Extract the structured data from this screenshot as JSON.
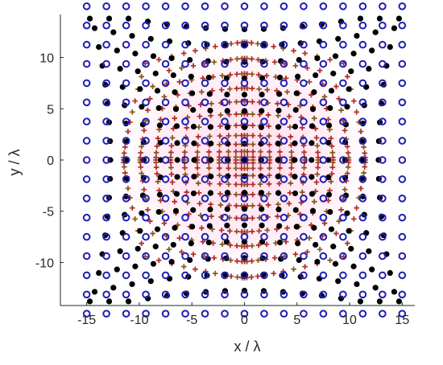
{
  "chart_data": {
    "type": "scatter",
    "title": "",
    "xlabel": "x / λ",
    "ylabel": "y / λ",
    "xlim": [
      -17.5,
      16.2
    ],
    "ylim": [
      -14.2,
      14.2
    ],
    "xticks": [
      -15,
      -10,
      -5,
      0,
      5,
      10,
      15
    ],
    "yticks": [
      -10,
      -5,
      0,
      5,
      10
    ],
    "grid": false,
    "legend": "none",
    "grid_extent": 15,
    "series": [
      {
        "marker": "open-circle",
        "color": "#1f1fb4",
        "description": "regular square lattice of points at integer spacing 1.875λ from -15 to 15 in both x and y (17 x 17 points)"
      },
      {
        "marker": "filled-circle",
        "color": "#000000",
        "description": "same lattice, mapped with pincushion distortion (points pulled toward center near the middle, outer rows bow outward)"
      },
      {
        "marker": "plus",
        "color": "#b5302a",
        "description": "dense lattice near the center with barrel-like distortion, forming a rounded-square cloud of extent about ±12λ"
      }
    ]
  }
}
